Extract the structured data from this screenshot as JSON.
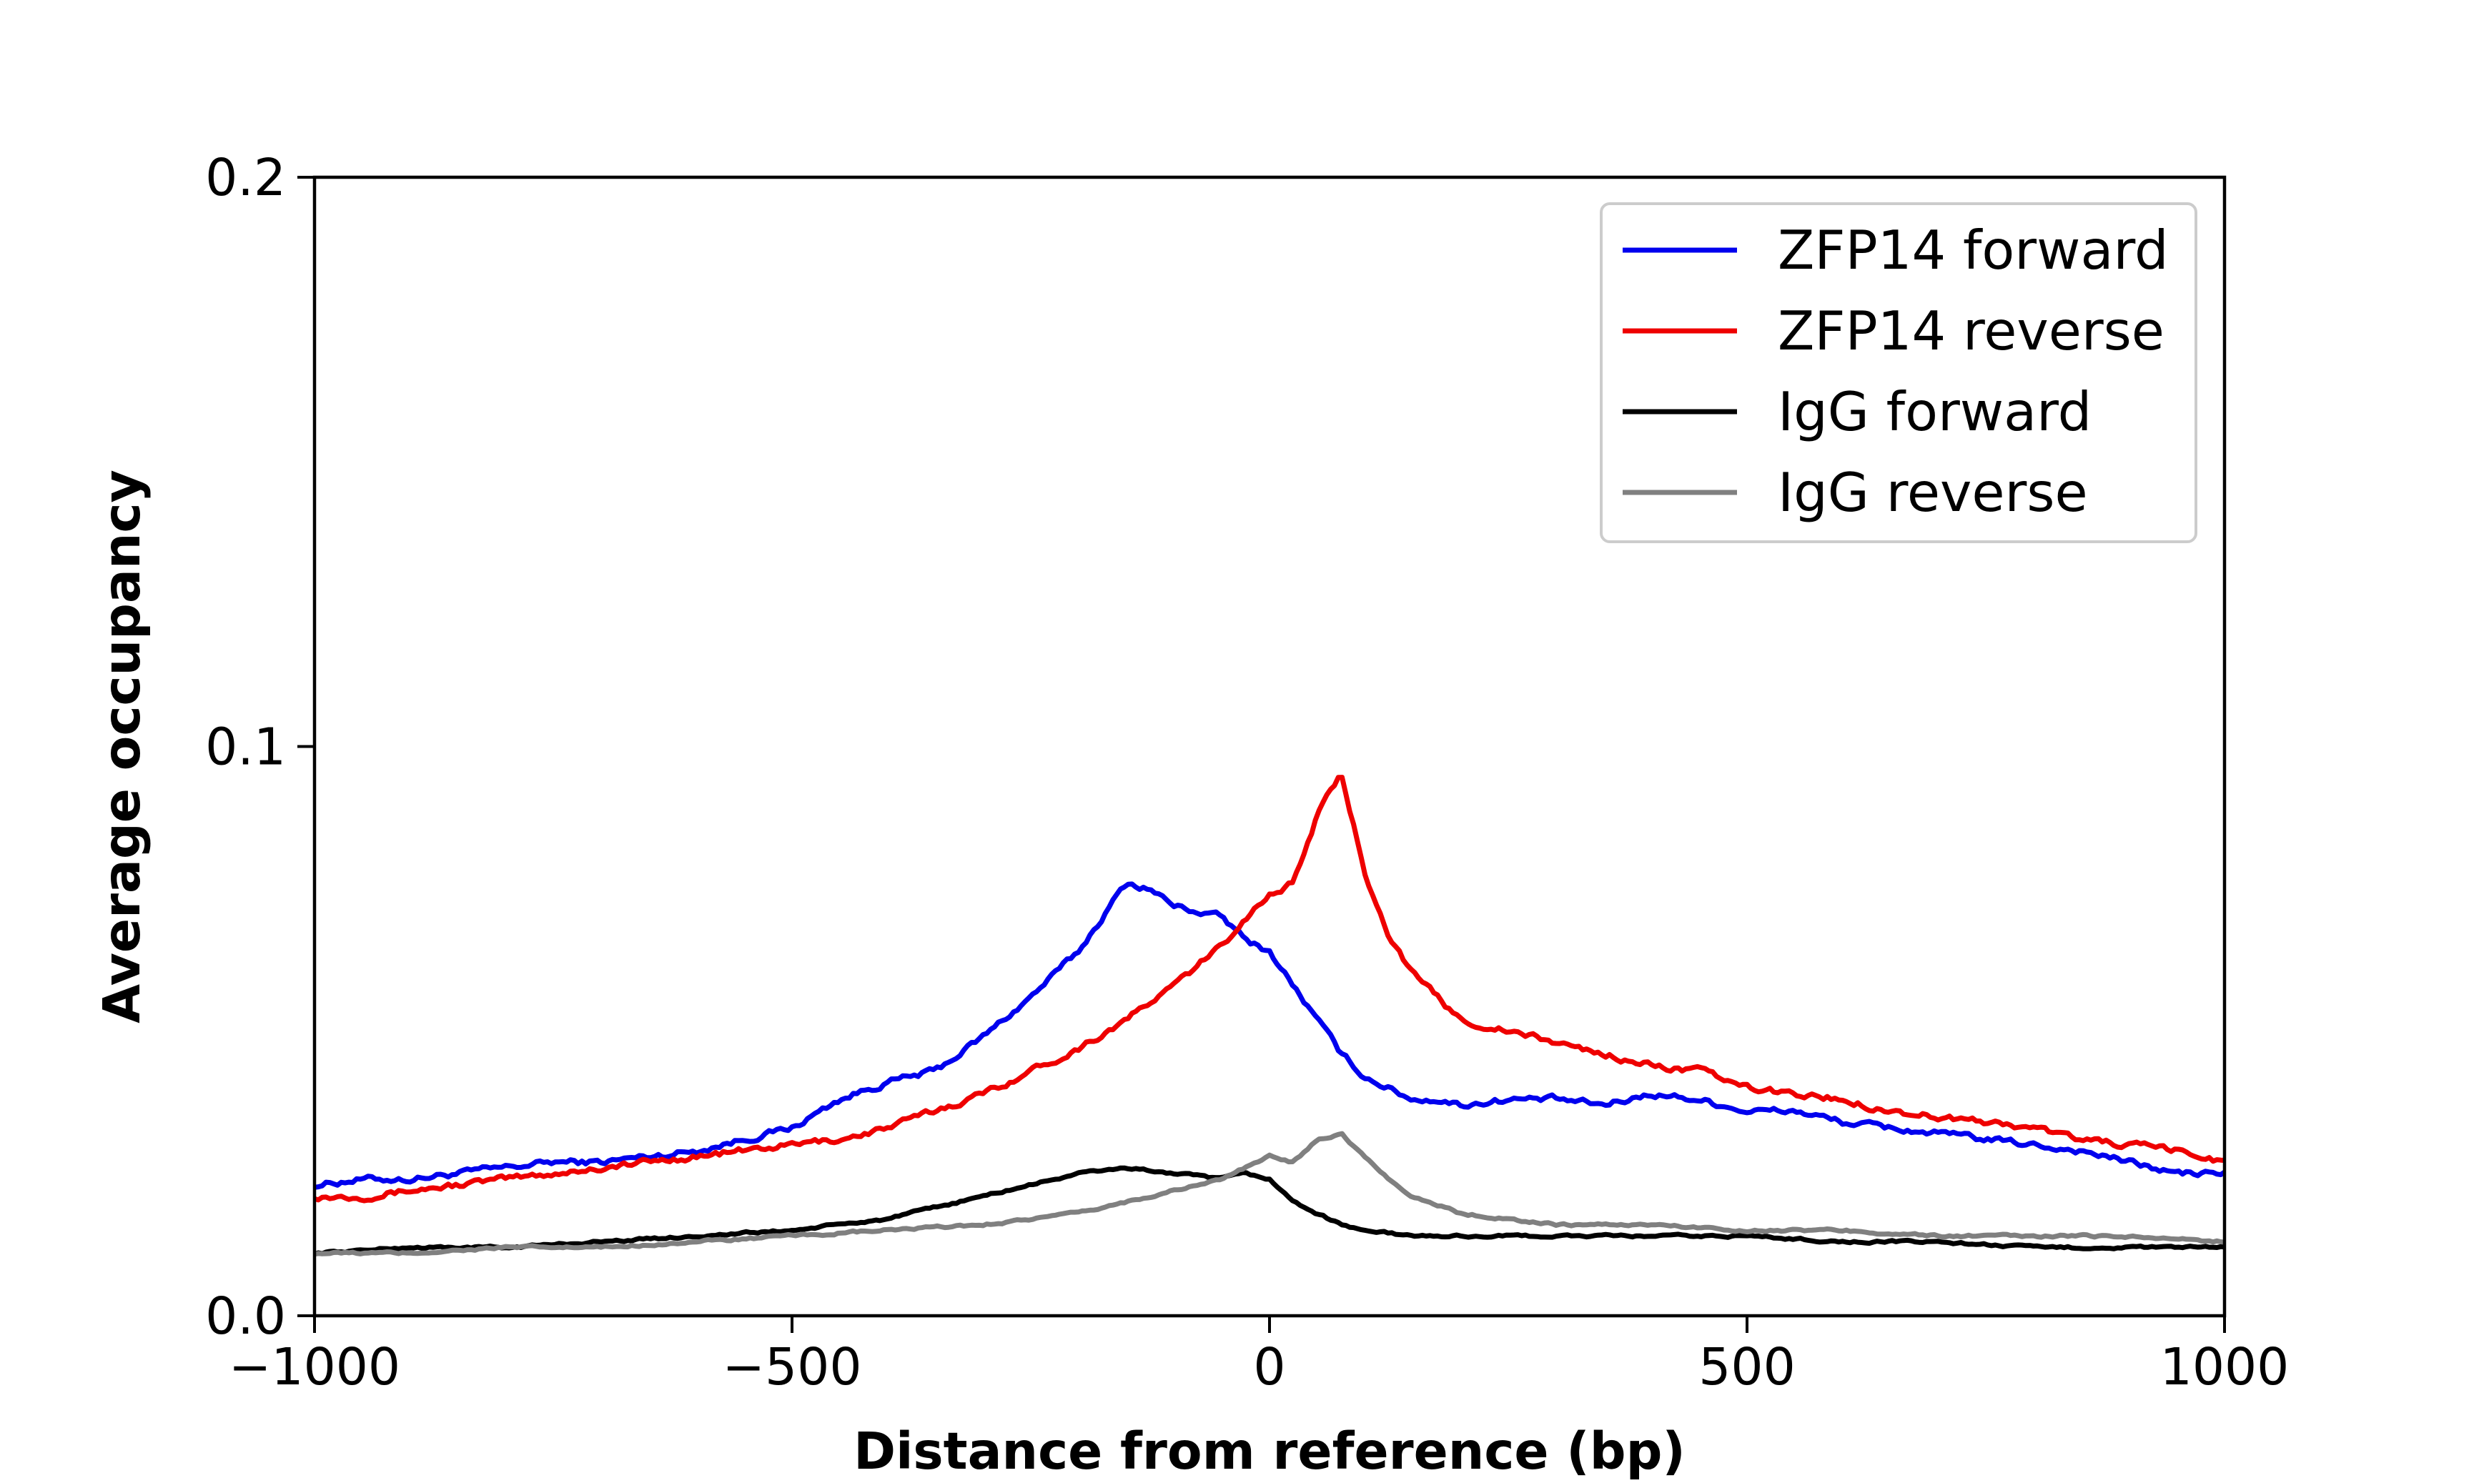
{
  "chart_data": {
    "type": "line",
    "title": "",
    "xlabel": "Distance from reference (bp)",
    "ylabel": "Average occupancy",
    "xlim": [
      -1000,
      1000
    ],
    "ylim": [
      0,
      0.2
    ],
    "x_ticks": [
      -1000,
      -500,
      0,
      500,
      1000
    ],
    "x_tick_labels": [
      "−1000",
      "−500",
      "0",
      "500",
      "1000"
    ],
    "y_ticks": [
      0,
      0.1,
      0.2
    ],
    "y_tick_labels": [
      "0.0",
      "0.1",
      "0.2"
    ],
    "grid": false,
    "legend_position": "top-right",
    "series": [
      {
        "name": "ZFP14 forward",
        "color": "#0000ee",
        "x": [
          -1000,
          -950,
          -900,
          -850,
          -800,
          -750,
          -700,
          -650,
          -600,
          -550,
          -500,
          -450,
          -400,
          -350,
          -300,
          -250,
          -200,
          -175,
          -150,
          -125,
          -100,
          -75,
          -50,
          -25,
          0,
          25,
          50,
          75,
          100,
          125,
          150,
          175,
          200,
          250,
          300,
          350,
          400,
          450,
          500,
          550,
          600,
          650,
          700,
          750,
          800,
          850,
          900,
          950,
          1000
        ],
        "y": [
          0.023,
          0.024,
          0.024,
          0.025,
          0.026,
          0.027,
          0.027,
          0.028,
          0.029,
          0.031,
          0.033,
          0.038,
          0.041,
          0.043,
          0.049,
          0.056,
          0.064,
          0.07,
          0.076,
          0.075,
          0.072,
          0.071,
          0.07,
          0.066,
          0.064,
          0.058,
          0.052,
          0.046,
          0.042,
          0.04,
          0.038,
          0.038,
          0.037,
          0.038,
          0.038,
          0.037,
          0.039,
          0.038,
          0.036,
          0.036,
          0.034,
          0.033,
          0.032,
          0.031,
          0.03,
          0.029,
          0.027,
          0.025,
          0.025
        ]
      },
      {
        "name": "ZFP14 reverse",
        "color": "#ee0000",
        "x": [
          -1000,
          -950,
          -900,
          -850,
          -800,
          -750,
          -700,
          -650,
          -600,
          -550,
          -500,
          -450,
          -400,
          -350,
          -300,
          -250,
          -200,
          -150,
          -100,
          -50,
          -25,
          0,
          25,
          50,
          75,
          100,
          125,
          150,
          175,
          200,
          250,
          300,
          350,
          400,
          450,
          500,
          550,
          600,
          650,
          700,
          750,
          800,
          850,
          900,
          950,
          1000
        ],
        "y": [
          0.021,
          0.021,
          0.022,
          0.023,
          0.024,
          0.025,
          0.026,
          0.027,
          0.028,
          0.029,
          0.03,
          0.031,
          0.033,
          0.036,
          0.039,
          0.043,
          0.047,
          0.052,
          0.058,
          0.065,
          0.07,
          0.074,
          0.076,
          0.088,
          0.095,
          0.078,
          0.067,
          0.06,
          0.056,
          0.052,
          0.05,
          0.048,
          0.046,
          0.044,
          0.043,
          0.04,
          0.039,
          0.038,
          0.036,
          0.035,
          0.034,
          0.033,
          0.031,
          0.03,
          0.029,
          0.027
        ]
      },
      {
        "name": "IgG forward",
        "color": "#000000",
        "x": [
          -1000,
          -900,
          -800,
          -700,
          -600,
          -500,
          -450,
          -400,
          -350,
          -300,
          -250,
          -200,
          -150,
          -100,
          -50,
          -25,
          0,
          25,
          50,
          75,
          100,
          150,
          200,
          300,
          400,
          500,
          600,
          700,
          800,
          900,
          1000
        ],
        "y": [
          0.011,
          0.012,
          0.012,
          0.013,
          0.014,
          0.015,
          0.016,
          0.017,
          0.019,
          0.021,
          0.023,
          0.025,
          0.026,
          0.025,
          0.024,
          0.025,
          0.024,
          0.02,
          0.018,
          0.016,
          0.015,
          0.014,
          0.014,
          0.014,
          0.014,
          0.014,
          0.013,
          0.013,
          0.012,
          0.012,
          0.012
        ]
      },
      {
        "name": "IgG reverse",
        "color": "#808080",
        "x": [
          -1000,
          -900,
          -800,
          -700,
          -600,
          -500,
          -400,
          -300,
          -200,
          -150,
          -100,
          -50,
          -25,
          0,
          25,
          50,
          75,
          100,
          125,
          150,
          200,
          300,
          400,
          500,
          600,
          700,
          800,
          900,
          1000
        ],
        "y": [
          0.011,
          0.011,
          0.012,
          0.012,
          0.013,
          0.014,
          0.015,
          0.016,
          0.018,
          0.02,
          0.022,
          0.024,
          0.026,
          0.028,
          0.027,
          0.031,
          0.032,
          0.028,
          0.024,
          0.021,
          0.018,
          0.016,
          0.016,
          0.015,
          0.015,
          0.014,
          0.014,
          0.014,
          0.013
        ]
      }
    ]
  }
}
